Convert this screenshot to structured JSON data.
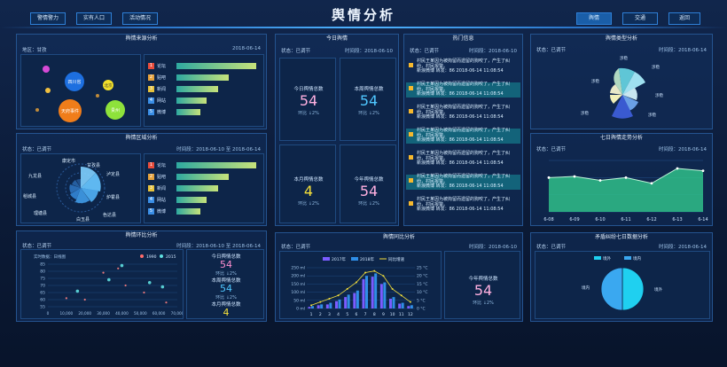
{
  "header": {
    "title": "舆情分析",
    "nav_left": [
      "警情警力",
      "实有人口",
      "活动情况"
    ],
    "nav_right": [
      "舆情",
      "交通",
      "返回"
    ]
  },
  "p1": {
    "title": "舆情来源分析",
    "region": "地区：甘孜",
    "date": "2018-06-14",
    "bubbles": [
      "四川省",
      "北京",
      "天府事件",
      "贵州"
    ],
    "ranks": [
      {
        "n": "1",
        "label": "论坛",
        "v": 0.95
      },
      {
        "n": "2",
        "label": "贴吧",
        "v": 0.62
      },
      {
        "n": "3",
        "label": "新闻",
        "v": 0.5
      },
      {
        "n": "4",
        "label": "网站",
        "v": 0.36
      },
      {
        "n": "5",
        "label": "微博",
        "v": 0.28
      }
    ]
  },
  "p2": {
    "title": "舆情区域分析",
    "status": "状态：已调节",
    "time": "时间段：2018-06-10 至 2018-06-14",
    "areas": [
      "康定市",
      "甘孜县",
      "泸定县",
      "九龙县",
      "炉霍县",
      "稻城县",
      "色达县",
      "白玉县",
      "理塘县"
    ],
    "ranks": [
      {
        "n": "1",
        "label": "论坛",
        "v": 0.95
      },
      {
        "n": "2",
        "label": "贴吧",
        "v": 0.62
      },
      {
        "n": "3",
        "label": "新闻",
        "v": 0.5
      },
      {
        "n": "4",
        "label": "网站",
        "v": 0.36
      },
      {
        "n": "5",
        "label": "微博",
        "v": 0.28
      }
    ]
  },
  "p3": {
    "title": "舆情环比分析",
    "status": "状态：已调节",
    "time": "时间段：2018-06-10 至 2018-06-14",
    "sub": "实时数据：日线图",
    "legend": [
      "1990",
      "2015"
    ],
    "yticks": [
      "85",
      "80",
      "75",
      "70",
      "65",
      "60",
      "55"
    ],
    "xticks": [
      "0",
      "10,000",
      "20,000",
      "30,000",
      "40,000",
      "50,000",
      "60,000",
      "70,000"
    ],
    "stats": [
      {
        "label": "今日舆情总数",
        "value": "54",
        "change": "环比 ↓2%"
      },
      {
        "label": "本周舆情总数",
        "value": "54",
        "change": "环比 ↓2%"
      },
      {
        "label": "本月舆情总数",
        "value": "4",
        "change": ""
      }
    ]
  },
  "p4": {
    "title": "今日舆情",
    "status": "状态：已调节",
    "time": "时间段：2018-06-10",
    "stats": [
      {
        "label": "今日舆情总数",
        "value": "54",
        "change": "环比 ↓2%"
      },
      {
        "label": "本周舆情总数",
        "value": "54",
        "change": "环比 ↓2%"
      },
      {
        "label": "本月舆情总数",
        "value": "4",
        "change": "环比 ↓2%"
      },
      {
        "label": "今年舆情总数",
        "value": "54",
        "change": "环比 ↓2%"
      }
    ]
  },
  "p5": {
    "title": "热门信息",
    "status": "状态：已调节",
    "time": "时间段：2018-06-10",
    "news": [
      {
        "t1": "村民王某因为被拘留而遗留的狗咬了，产生了纠",
        "t2": "纷，村民报警。",
        "t3": "新浪微博 转发：86 2018-06-14 11:08:54"
      },
      {
        "t1": "村民王某因为被拘留而遗留的狗咬了，产生了纠",
        "t2": "纷，村民报警。",
        "t3": "新浪微博 转发：86 2018-06-14 11:08:54"
      },
      {
        "t1": "村民王某因为被拘留而遗留的狗咬了，产生了纠",
        "t2": "纷，村民报警。",
        "t3": "新浪微博 转发：86 2018-06-14 11:08:54"
      },
      {
        "t1": "村民王某因为被拘留而遗留的狗咬了，产生了纠",
        "t2": "纷，村民报警。",
        "t3": "新浪微博 转发：86 2018-06-14 11:08:54"
      },
      {
        "t1": "村民王某因为被拘留而遗留的狗咬了，产生了纠",
        "t2": "纷，村民报警。",
        "t3": "新浪微博 转发：86 2018-06-14 11:08:54"
      },
      {
        "t1": "村民王某因为被拘留而遗留的狗咬了，产生了纠",
        "t2": "纷，村民报警。",
        "t3": "新浪微博 转发：86 2018-06-14 11:08:54"
      },
      {
        "t1": "村民王某因为被拘留而遗留的狗咬了，产生了纠",
        "t2": "纷，村民报警。",
        "t3": "新浪微博 转发：86 2018-06-14 11:08:54"
      }
    ]
  },
  "p6": {
    "title": "舆情同比分析",
    "status": "状态：已调节",
    "time": "时间段：2018-06-10",
    "legend": [
      "2017年",
      "2018年",
      "同比增速"
    ],
    "side": {
      "label": "今年舆情总数",
      "value": "54",
      "change": "环比 ↓2%"
    }
  },
  "p7": {
    "title": "舆情类型分析",
    "status": "状态：已调节",
    "time": "时间段：2018-06-14",
    "label": "涉稳"
  },
  "p8": {
    "title": "七日舆情走势分析",
    "status": "状态：已调节",
    "time": "时间段：2018-06-14"
  },
  "p9": {
    "title": "矛盾纠纷七日数据分析",
    "status": "状态：已调节",
    "time": "时间段：2018-06-14",
    "legend": [
      "境外",
      "境内"
    ],
    "slices": [
      "境内",
      "境外"
    ]
  },
  "chart_data": [
    {
      "type": "line",
      "title": "七日舆情走势分析",
      "categories": [
        "6-08",
        "6-09",
        "6-10",
        "6-11",
        "6-12",
        "6-13",
        "6-14"
      ],
      "values": [
        60,
        62,
        55,
        60,
        50,
        76,
        72
      ],
      "ylim": [
        0,
        90
      ]
    },
    {
      "type": "bar",
      "title": "舆情同比分析",
      "categories": [
        "1",
        "2",
        "3",
        "4",
        "5",
        "6",
        "7",
        "8",
        "9",
        "10",
        "11",
        "12"
      ],
      "series": [
        {
          "name": "2017年",
          "values": [
            10,
            20,
            25,
            45,
            70,
            95,
            180,
            195,
            150,
            60,
            30,
            15
          ]
        },
        {
          "name": "2018年",
          "values": [
            15,
            25,
            35,
            55,
            85,
            110,
            200,
            215,
            160,
            70,
            35,
            20
          ]
        },
        {
          "name": "同比增速",
          "values": [
            2,
            4,
            6,
            8,
            12,
            16,
            22,
            23,
            20,
            12,
            8,
            4
          ]
        }
      ],
      "yticks": [
        "250 ml",
        "200 ml",
        "150 ml",
        "100 ml",
        "50 ml",
        "0 ml"
      ],
      "y2ticks": [
        "25 °C",
        "20 °C",
        "15 °C",
        "10 °C",
        "5 °C",
        "0 °C"
      ]
    },
    {
      "type": "pie",
      "title": "矛盾纠纷七日数据分析",
      "labels": [
        "境内",
        "境外"
      ],
      "values": [
        50,
        50
      ]
    },
    {
      "type": "scatter",
      "title": "舆情环比分析",
      "series": [
        {
          "name": "1990",
          "points": [
            [
              10000,
              61
            ],
            [
              20000,
              60
            ],
            [
              30000,
              79
            ],
            [
              38000,
              82
            ],
            [
              42000,
              70
            ],
            [
              52000,
              65
            ],
            [
              64000,
              58
            ]
          ]
        },
        {
          "name": "2015",
          "points": [
            [
              16000,
              66
            ],
            [
              33000,
              74
            ],
            [
              40000,
              84
            ],
            [
              55000,
              72
            ],
            [
              62000,
              69
            ]
          ]
        }
      ],
      "xlim": [
        0,
        70000
      ],
      "ylim": [
        55,
        85
      ]
    }
  ]
}
